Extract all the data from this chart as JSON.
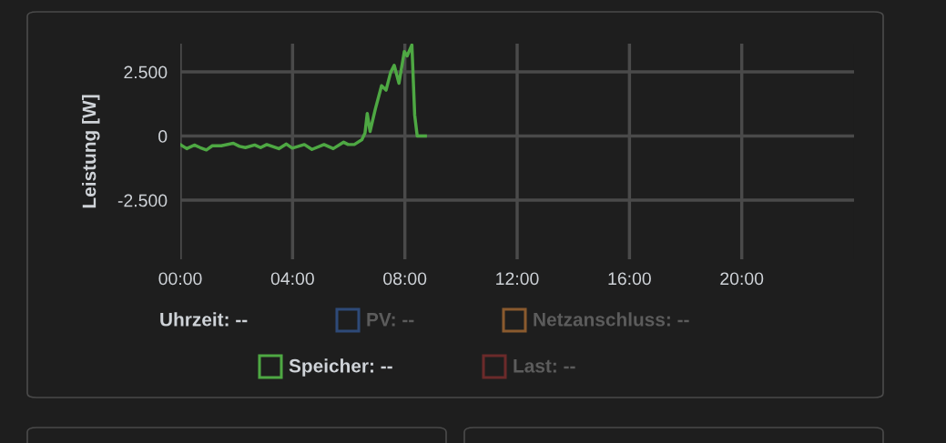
{
  "chart_data": {
    "type": "line",
    "ylabel": "Leistung [W]",
    "legend_title": "Uhrzeit: --",
    "x": [
      0,
      0.23,
      0.5,
      0.71,
      0.93,
      1.14,
      1.46,
      1.89,
      2.11,
      2.32,
      2.65,
      2.86,
      3.08,
      3.51,
      3.78,
      3.99,
      4.42,
      4.69,
      5.12,
      5.45,
      5.82,
      5.98,
      6.2,
      6.47,
      6.58,
      6.66,
      6.76,
      6.95,
      7.17,
      7.33,
      7.49,
      7.62,
      7.79,
      7.98,
      8.08,
      8.25,
      8.35,
      8.44,
      8.73
    ],
    "series": [
      {
        "name": "PV: --",
        "color": "#2e4a78",
        "values": [
          null,
          null,
          null,
          null,
          null,
          null,
          null,
          null,
          null,
          null,
          null,
          null,
          null,
          null,
          null,
          null,
          null,
          null,
          null,
          null,
          null,
          null,
          null,
          null,
          null,
          null,
          null,
          null,
          null,
          null,
          null,
          null,
          null,
          null,
          null,
          null,
          null,
          null,
          null
        ]
      },
      {
        "name": "Netzanschluss: --",
        "color": "#8a5a2e",
        "values": [
          null,
          null,
          null,
          null,
          null,
          null,
          null,
          null,
          null,
          null,
          null,
          null,
          null,
          null,
          null,
          null,
          null,
          null,
          null,
          null,
          null,
          null,
          null,
          null,
          null,
          null,
          null,
          null,
          null,
          null,
          null,
          null,
          null,
          null,
          null,
          null,
          null,
          null,
          null
        ]
      },
      {
        "name": "Speicher: --",
        "color": "#4ea843",
        "values": [
          -330,
          -490,
          -350,
          -450,
          -540,
          -380,
          -380,
          -280,
          -400,
          -450,
          -350,
          -450,
          -330,
          -490,
          -310,
          -470,
          -330,
          -520,
          -330,
          -490,
          -240,
          -330,
          -330,
          -140,
          120,
          880,
          180,
          1060,
          1960,
          1790,
          2470,
          2760,
          2060,
          3290,
          3120,
          3550,
          820,
          0,
          0
        ]
      },
      {
        "name": "Last: --",
        "color": "#6b2a2a",
        "values": [
          null,
          null,
          null,
          null,
          null,
          null,
          null,
          null,
          null,
          null,
          null,
          null,
          null,
          null,
          null,
          null,
          null,
          null,
          null,
          null,
          null,
          null,
          null,
          null,
          null,
          null,
          null,
          null,
          null,
          null,
          null,
          null,
          null,
          null,
          null,
          null,
          null,
          null,
          null
        ]
      }
    ],
    "xlim": [
      0,
      24
    ],
    "xticks": [
      {
        "value": 0,
        "label": "00:00"
      },
      {
        "value": 4,
        "label": "04:00"
      },
      {
        "value": 8,
        "label": "08:00"
      },
      {
        "value": 12,
        "label": "12:00"
      },
      {
        "value": 16,
        "label": "16:00"
      },
      {
        "value": 20,
        "label": "20:00"
      }
    ],
    "ylim": [
      -4800,
      3600
    ],
    "yticks": [
      {
        "value": 2500,
        "label": "2.500"
      },
      {
        "value": 0,
        "label": "0"
      },
      {
        "value": -2500,
        "label": "-2.500"
      }
    ],
    "grid": true,
    "legend": "bottom",
    "marker": "none",
    "line_style": "solid"
  }
}
